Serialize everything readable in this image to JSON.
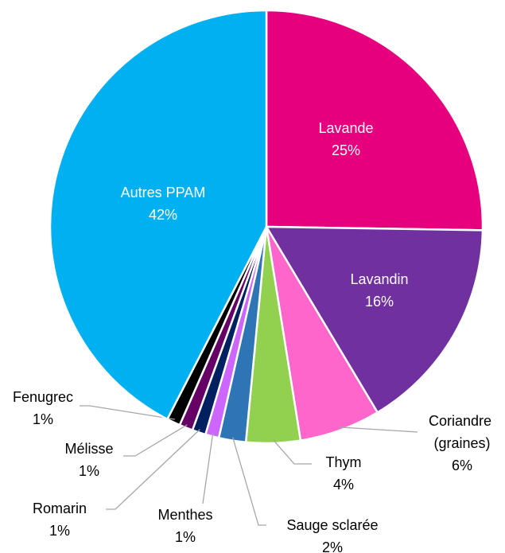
{
  "chart_data": {
    "type": "pie",
    "categories": [
      "Lavande",
      "Lavandin",
      "Coriandre (graines)",
      "Thym",
      "Sauge sclarée",
      "Menthes",
      "Romarin",
      "Mélisse",
      "Fenugrec",
      "Autres PPAM"
    ],
    "values": [
      25,
      16,
      6,
      4,
      2,
      1,
      1,
      1,
      1,
      42
    ],
    "value_labels": [
      "25%",
      "16%",
      "6%",
      "4%",
      "2%",
      "1%",
      "1%",
      "1%",
      "1%",
      "42%"
    ],
    "colors": [
      "#e6007e",
      "#7030a0",
      "#ff66cc",
      "#92d050",
      "#2e75b6",
      "#cc66ff",
      "#002060",
      "#660066",
      "#000000",
      "#00b0f0"
    ]
  }
}
